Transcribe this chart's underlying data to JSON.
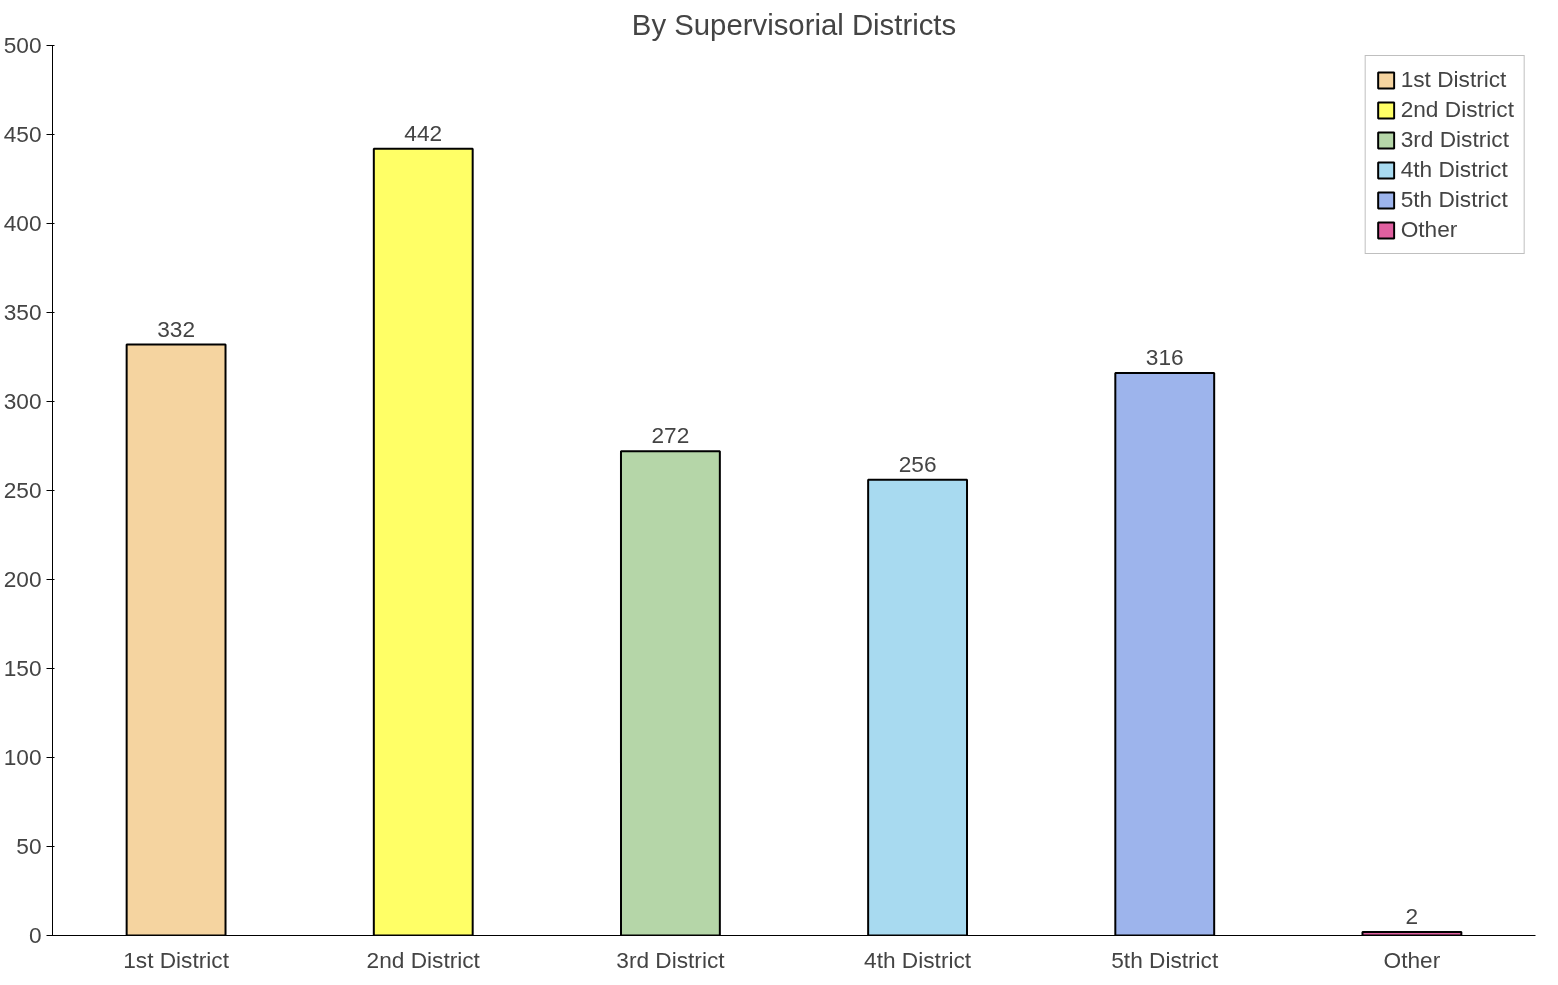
{
  "chart_data": {
    "type": "bar",
    "title": "By Supervisorial Districts",
    "categories": [
      "1st District",
      "2nd District",
      "3rd District",
      "4th District",
      "5th District",
      "Other"
    ],
    "stacked": true,
    "series": [
      {
        "name": "1st District",
        "color": "#f5d4a0",
        "values": [
          332,
          null,
          null,
          null,
          null,
          null
        ]
      },
      {
        "name": "2nd District",
        "color": "#ffff66",
        "values": [
          null,
          442,
          null,
          null,
          null,
          null
        ]
      },
      {
        "name": "3rd District",
        "color": "#b5d6a8",
        "values": [
          null,
          null,
          272,
          null,
          null,
          null
        ]
      },
      {
        "name": "4th District",
        "color": "#a8daf0",
        "values": [
          null,
          null,
          null,
          256,
          null,
          null
        ]
      },
      {
        "name": "5th District",
        "color": "#9db4ec",
        "values": [
          null,
          null,
          null,
          null,
          316,
          null
        ]
      },
      {
        "name": "Other",
        "color": "#e060a0",
        "values": [
          null,
          null,
          null,
          null,
          null,
          2
        ]
      }
    ],
    "ylim": [
      0,
      500
    ],
    "yticks": [
      0,
      50,
      100,
      150,
      200,
      250,
      300,
      350,
      400,
      450,
      500
    ],
    "grid": false,
    "legend": "top right",
    "data_labels": true
  }
}
